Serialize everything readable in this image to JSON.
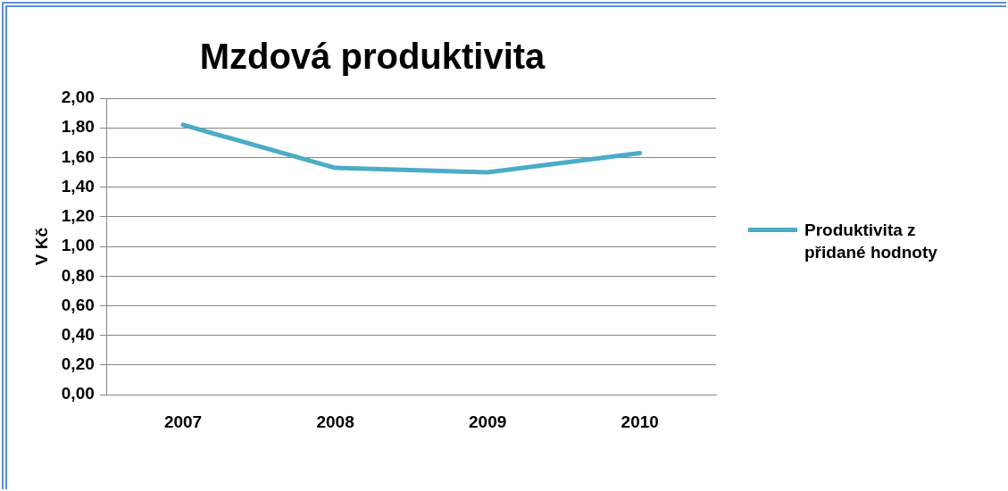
{
  "chart_data": {
    "type": "line",
    "title": "Mzdová produktivita",
    "ylabel": "V Kč",
    "categories": [
      "2007",
      "2008",
      "2009",
      "2010"
    ],
    "series": [
      {
        "name": "Produktivita z přidané hodnoty",
        "color": "#4bacc6",
        "values": [
          1.82,
          1.53,
          1.5,
          1.63
        ]
      }
    ],
    "ylim": [
      0,
      2
    ],
    "yticks": [
      {
        "value": 0,
        "label": "0,00"
      },
      {
        "value": 0.2,
        "label": "0,20"
      },
      {
        "value": 0.4,
        "label": "0,40"
      },
      {
        "value": 0.6,
        "label": "0,60"
      },
      {
        "value": 0.8,
        "label": "0,80"
      },
      {
        "value": 1,
        "label": "1,00"
      },
      {
        "value": 1.2,
        "label": "1,20"
      },
      {
        "value": 1.4,
        "label": "1,40"
      },
      {
        "value": 1.6,
        "label": "1,60"
      },
      {
        "value": 1.8,
        "label": "1,80"
      },
      {
        "value": 2,
        "label": "2,00"
      }
    ],
    "grid": "y",
    "legend": "right",
    "marker": "none",
    "line_style": "solid"
  }
}
